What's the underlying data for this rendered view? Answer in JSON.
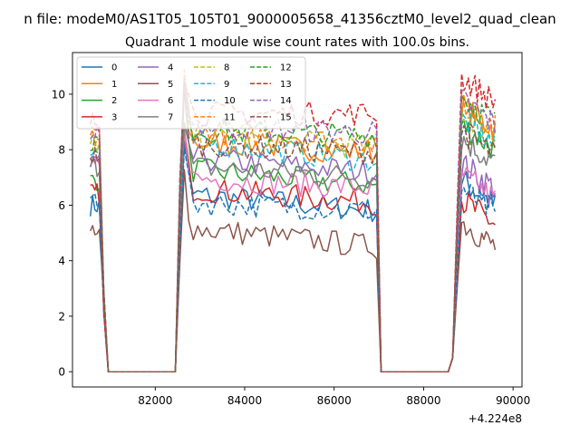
{
  "chart_data": {
    "type": "line",
    "suptitle": "n file: modeM0/AS1T05_105T01_9000005658_41356cztM0_level2_quad_clean",
    "title": "Quadrant 1 module wise count rates with 100.0s bins.",
    "xlabel": "",
    "ylabel": "",
    "x_offset_label": "+4.224e8",
    "xlim": [
      80150,
      90200
    ],
    "ylim": [
      -0.55,
      11.5
    ],
    "xticks": [
      82000,
      84000,
      86000,
      88000,
      90000
    ],
    "yticks": [
      0,
      2,
      4,
      6,
      8,
      10
    ],
    "legend_position": "top-left",
    "legend_columns": 4,
    "segments_x_ranges": [
      [
        80550,
        80750
      ],
      [
        82650,
        86950
      ],
      [
        88850,
        89600
      ]
    ],
    "zero_x_ranges": [
      [
        80950,
        82450
      ],
      [
        87050,
        88550
      ]
    ],
    "series": [
      {
        "name": "0",
        "color": "#1f77b4",
        "dash": "solid",
        "level_a": 6.0,
        "level_b": 6.4,
        "level_b_end": 5.8,
        "level_c": 6.9
      },
      {
        "name": "1",
        "color": "#ff7f0e",
        "dash": "solid",
        "level_a": 8.7,
        "level_b": 8.3,
        "level_b_end": 7.9,
        "level_c": 9.6
      },
      {
        "name": "2",
        "color": "#2ca02c",
        "dash": "solid",
        "level_a": 6.9,
        "level_b": 7.3,
        "level_b_end": 6.7,
        "level_c": 8.9
      },
      {
        "name": "3",
        "color": "#d62728",
        "dash": "solid",
        "level_a": 6.4,
        "level_b": 6.6,
        "level_b_end": 6.1,
        "level_c": 6.2
      },
      {
        "name": "4",
        "color": "#9467bd",
        "dash": "solid",
        "level_a": 7.6,
        "level_b": 7.7,
        "level_b_end": 7.2,
        "level_c": 7.5
      },
      {
        "name": "5",
        "color": "#8c564b",
        "dash": "solid",
        "level_a": 4.9,
        "level_b": 5.2,
        "level_b_end": 4.5,
        "level_c": 5.4
      },
      {
        "name": "6",
        "color": "#e377c2",
        "dash": "solid",
        "level_a": 7.3,
        "level_b": 7.0,
        "level_b_end": 6.6,
        "level_c": 7.1
      },
      {
        "name": "7",
        "color": "#7f7f7f",
        "dash": "solid",
        "level_a": 7.4,
        "level_b": 7.4,
        "level_b_end": 7.0,
        "level_c": 8.4
      },
      {
        "name": "8",
        "color": "#bcbd22",
        "dash": "dashed",
        "level_a": 8.2,
        "level_b": 8.5,
        "level_b_end": 8.1,
        "level_c": 9.4
      },
      {
        "name": "9",
        "color": "#17becf",
        "dash": "dashed",
        "level_a": 7.9,
        "level_b": 8.3,
        "level_b_end": 7.6,
        "level_c": 9.1
      },
      {
        "name": "10",
        "color": "#1f77b4",
        "dash": "dashed",
        "level_a": 6.3,
        "level_b": 6.1,
        "level_b_end": 5.8,
        "level_c": 6.6
      },
      {
        "name": "11",
        "color": "#ff7f0e",
        "dash": "dashed",
        "level_a": 8.4,
        "level_b": 8.7,
        "level_b_end": 8.2,
        "level_c": 9.7
      },
      {
        "name": "12",
        "color": "#2ca02c",
        "dash": "dashed",
        "level_a": 8.3,
        "level_b": 8.7,
        "level_b_end": 8.5,
        "level_c": 9.9
      },
      {
        "name": "13",
        "color": "#d62728",
        "dash": "dashed",
        "level_a": 9.0,
        "level_b": 9.3,
        "level_b_end": 9.3,
        "level_c": 10.6
      },
      {
        "name": "14",
        "color": "#9467bd",
        "dash": "dashed",
        "level_a": 8.5,
        "level_b": 8.9,
        "level_b_end": 8.6,
        "level_c": 9.8
      },
      {
        "name": "15",
        "color": "#8c564b",
        "dash": "dashed",
        "level_a": 7.8,
        "level_b": 8.2,
        "level_b_end": 7.9,
        "level_c": 8.7
      }
    ]
  }
}
